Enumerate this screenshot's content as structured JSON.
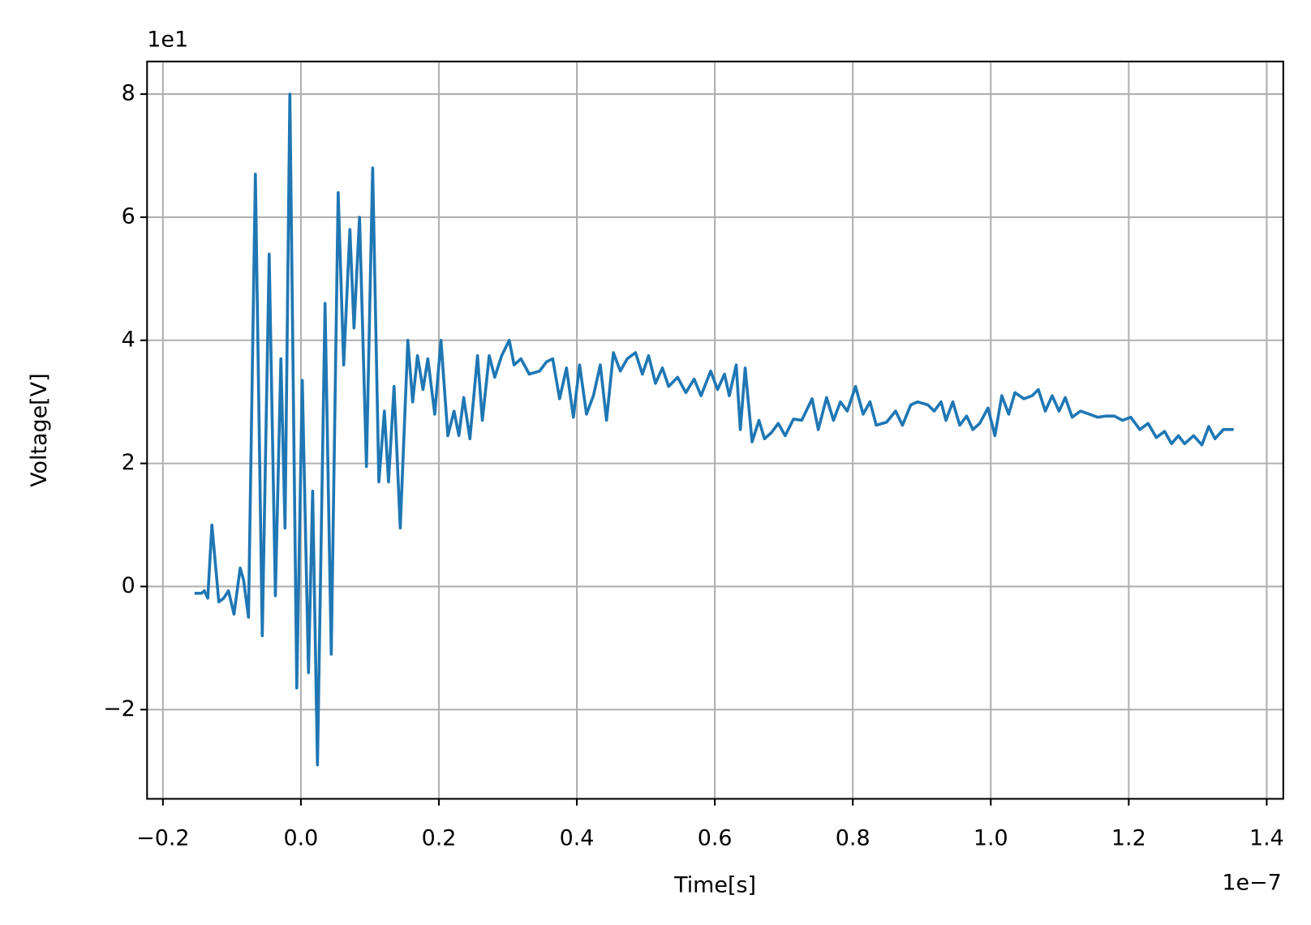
{
  "chart_data": {
    "type": "line",
    "x_label": "Time[s]",
    "y_label": "Voltage[V]",
    "x_offset_text": "1e−7",
    "y_offset_text": "1e1",
    "grid": true,
    "xlim": [
      -0.223,
      1.424
    ],
    "ylim": [
      -3.45,
      8.53
    ],
    "xticks": [
      {
        "value": -0.2,
        "label": "−0.2"
      },
      {
        "value": 0,
        "label": "0.0"
      },
      0.2,
      0.4,
      0.6,
      0.8,
      {
        "value": 1,
        "label": "1.0"
      },
      1.2,
      1.4
    ],
    "yticks": [
      {
        "value": -2,
        "label": "−2"
      },
      0,
      2,
      4,
      6,
      8
    ],
    "x": [
      -0.152,
      -0.144,
      -0.14,
      -0.135,
      -0.129,
      -0.123,
      -0.119,
      -0.112,
      -0.105,
      -0.097,
      -0.088,
      -0.083,
      -0.076,
      -0.066,
      -0.056,
      -0.046,
      -0.037,
      -0.029,
      -0.023,
      -0.016,
      -0.006,
      0.002,
      0.011,
      0.017,
      0.024,
      0.035,
      0.044,
      0.054,
      0.062,
      0.071,
      0.077,
      0.085,
      0.095,
      0.104,
      0.113,
      0.121,
      0.127,
      0.135,
      0.144,
      0.155,
      0.162,
      0.169,
      0.177,
      0.184,
      0.194,
      0.203,
      0.213,
      0.222,
      0.229,
      0.236,
      0.245,
      0.256,
      0.263,
      0.273,
      0.281,
      0.291,
      0.302,
      0.309,
      0.319,
      0.331,
      0.346,
      0.356,
      0.365,
      0.375,
      0.385,
      0.395,
      0.404,
      0.414,
      0.424,
      0.434,
      0.443,
      0.453,
      0.463,
      0.473,
      0.485,
      0.495,
      0.504,
      0.514,
      0.524,
      0.533,
      0.546,
      0.558,
      0.57,
      0.58,
      0.594,
      0.604,
      0.614,
      0.621,
      0.631,
      0.637,
      0.644,
      0.654,
      0.664,
      0.672,
      0.682,
      0.692,
      0.702,
      0.714,
      0.726,
      0.741,
      0.75,
      0.762,
      0.772,
      0.782,
      0.792,
      0.804,
      0.815,
      0.825,
      0.834,
      0.849,
      0.862,
      0.872,
      0.884,
      0.894,
      0.909,
      0.918,
      0.928,
      0.935,
      0.945,
      0.955,
      0.965,
      0.974,
      0.984,
      0.996,
      1.006,
      1.016,
      1.026,
      1.035,
      1.048,
      1.06,
      1.069,
      1.079,
      1.089,
      1.099,
      1.108,
      1.118,
      1.13,
      1.143,
      1.155,
      1.167,
      1.179,
      1.191,
      1.203,
      1.216,
      1.228,
      1.24,
      1.252,
      1.262,
      1.272,
      1.281,
      1.294,
      1.306,
      1.316,
      1.325,
      1.337,
      1.35
    ],
    "series": [
      {
        "name": "Voltage",
        "color": "#1f77b4",
        "values": [
          -0.11,
          -0.11,
          -0.07,
          -0.19,
          1.0,
          0.25,
          -0.25,
          -0.19,
          -0.07,
          -0.45,
          0.3,
          0.1,
          -0.5,
          6.7,
          -0.8,
          5.4,
          -0.15,
          3.7,
          0.95,
          8.0,
          -1.65,
          3.35,
          -1.4,
          1.55,
          -2.9,
          4.6,
          -1.1,
          6.4,
          3.6,
          5.8,
          4.2,
          6.0,
          1.95,
          6.8,
          1.7,
          2.85,
          1.7,
          3.25,
          0.95,
          4.0,
          3.0,
          3.75,
          3.2,
          3.7,
          2.8,
          4.0,
          2.45,
          2.85,
          2.45,
          3.07,
          2.4,
          3.75,
          2.7,
          3.75,
          3.4,
          3.75,
          4.0,
          3.6,
          3.7,
          3.45,
          3.5,
          3.65,
          3.7,
          3.05,
          3.55,
          2.75,
          3.6,
          2.8,
          3.1,
          3.6,
          2.7,
          3.8,
          3.5,
          3.7,
          3.8,
          3.45,
          3.75,
          3.3,
          3.55,
          3.25,
          3.4,
          3.15,
          3.37,
          3.1,
          3.5,
          3.2,
          3.45,
          3.1,
          3.6,
          2.55,
          3.55,
          2.35,
          2.7,
          2.4,
          2.5,
          2.65,
          2.45,
          2.72,
          2.7,
          3.05,
          2.55,
          3.07,
          2.7,
          3.0,
          2.85,
          3.25,
          2.8,
          3.0,
          2.62,
          2.67,
          2.85,
          2.62,
          2.95,
          3.0,
          2.95,
          2.85,
          3.0,
          2.7,
          3.0,
          2.62,
          2.77,
          2.55,
          2.65,
          2.9,
          2.45,
          3.1,
          2.8,
          3.15,
          3.05,
          3.1,
          3.2,
          2.85,
          3.1,
          2.85,
          3.07,
          2.75,
          2.85,
          2.8,
          2.75,
          2.77,
          2.77,
          2.7,
          2.75,
          2.55,
          2.65,
          2.42,
          2.52,
          2.32,
          2.45,
          2.32,
          2.45,
          2.3,
          2.6,
          2.4,
          2.55,
          2.55
        ]
      }
    ]
  }
}
